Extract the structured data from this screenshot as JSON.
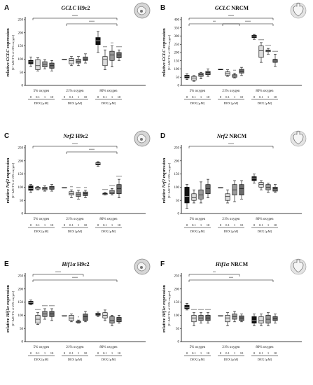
{
  "panels": [
    {
      "letter": "A",
      "title_gene": "GCLC",
      "title_cell": "H9c2",
      "ylabel_gene": "GCLC",
      "ylabel_pre": "relative ",
      "ylabel_post": " expression",
      "ysub": "[2^-ΔΔCT % of 21% oxygen]",
      "icon": "cell-icon",
      "ylim": [
        0,
        250
      ],
      "yticks": [
        0,
        50,
        100,
        150,
        200,
        250
      ],
      "groups": [
        "5% oxygen",
        "21% oxygen",
        "80% oxygen"
      ],
      "doses": [
        "0",
        "0.1",
        "1",
        "10"
      ],
      "dex_label": "DEX [µM]",
      "brackets": [
        {
          "from": 0,
          "to": 2,
          "level": 2,
          "text": "****"
        },
        {
          "from": 1,
          "to": 2,
          "level": 1,
          "text": "****"
        }
      ],
      "stars": [
        [
          "",
          "",
          "",
          ""
        ],
        [
          "",
          "",
          "",
          ""
        ],
        [
          "",
          "***",
          "**",
          "****"
        ]
      ]
    },
    {
      "letter": "B",
      "title_gene": "GCLC",
      "title_cell": "NRCM",
      "ylabel_gene": "GCLC",
      "ylabel_pre": "relative ",
      "ylabel_post": " expression",
      "ysub": "[2^-ΔΔCT % of 21% oxygen]",
      "icon": "heart-icon",
      "ylim": [
        0,
        400
      ],
      "yticks": [
        0,
        50,
        100,
        150,
        200,
        250,
        300,
        350,
        400
      ],
      "groups": [
        "5% oxygen",
        "21% oxygen",
        "80% oxygen"
      ],
      "doses": [
        "0",
        "0.1",
        "1",
        "10"
      ],
      "dex_label": "DEX [µM]",
      "brackets": [
        {
          "from": 0,
          "to": 2,
          "level": 2,
          "text": "****"
        },
        {
          "from": 0,
          "to": 1,
          "level": 1,
          "text": "**"
        },
        {
          "from": 1,
          "to": 2,
          "level": 1,
          "text": "****"
        }
      ],
      "stars": [
        [
          "",
          "",
          "",
          ""
        ],
        [
          "",
          "",
          "**",
          ""
        ],
        [
          "",
          "****",
          "****",
          "****"
        ]
      ]
    },
    {
      "letter": "C",
      "title_gene": "Nrf2",
      "title_cell": "H9c2",
      "ylabel_gene": "Nrf2",
      "ylabel_pre": "relative ",
      "ylabel_post": " expression",
      "ysub": "[2^-ΔΔCT % of 21% oxygen]",
      "icon": "cell-icon",
      "ylim": [
        0,
        250
      ],
      "yticks": [
        0,
        50,
        100,
        150,
        200,
        250
      ],
      "groups": [
        "5% oxygen",
        "21% oxygen",
        "80% oxygen"
      ],
      "doses": [
        "0",
        "0.1",
        "1",
        "10"
      ],
      "dex_label": "DEX [µM]",
      "brackets": [
        {
          "from": 0,
          "to": 2,
          "level": 2,
          "text": "****"
        },
        {
          "from": 1,
          "to": 2,
          "level": 1,
          "text": "****"
        }
      ],
      "stars": [
        [
          "",
          "",
          "",
          ""
        ],
        [
          "",
          "**",
          "***",
          "**"
        ],
        [
          "",
          "****",
          "****",
          "****"
        ]
      ]
    },
    {
      "letter": "D",
      "title_gene": "Nrf2",
      "title_cell": "NRCM",
      "ylabel_gene": "Nrf2",
      "ylabel_pre": "relative ",
      "ylabel_post": " expression",
      "ysub": "[2^-ΔΔCT % of 21% oxygen]",
      "icon": "heart-icon",
      "ylim": [
        0,
        250
      ],
      "yticks": [
        0,
        50,
        100,
        150,
        200,
        250
      ],
      "groups": [
        "5% oxygen",
        "21% oxygen",
        "80% oxygen"
      ],
      "doses": [
        "0",
        "0.1",
        "1",
        "10"
      ],
      "dex_label": "DEX [µM]",
      "brackets": [
        {
          "from": 0,
          "to": 2,
          "level": 2,
          "text": "****"
        }
      ],
      "stars": [
        [
          "",
          "",
          "",
          ""
        ],
        [
          "",
          "",
          "",
          ""
        ],
        [
          "",
          "",
          "",
          ""
        ]
      ]
    },
    {
      "letter": "E",
      "title_gene": "Hif1α",
      "title_cell": "H9c2",
      "ylabel_gene": "Hif1α",
      "ylabel_pre": "relative ",
      "ylabel_post": " expression",
      "ysub": "[2^-ΔΔCT % of 21% oxygen]",
      "icon": "cell-icon",
      "ylim": [
        0,
        250
      ],
      "yticks": [
        0,
        50,
        100,
        150,
        200,
        250
      ],
      "groups": [
        "5% oxygen",
        "21% oxygen",
        "80% oxygen"
      ],
      "doses": [
        "0",
        "0.1",
        "1",
        "10"
      ],
      "dex_label": "DEX [µM]",
      "brackets": [
        {
          "from": 0,
          "to": 1,
          "level": 2,
          "text": "****"
        },
        {
          "from": 0,
          "to": 2,
          "level": 1,
          "text": "****"
        }
      ],
      "stars": [
        [
          "",
          "****",
          "****",
          "****"
        ],
        [
          "",
          "",
          "*",
          ""
        ],
        [
          "",
          "",
          "",
          ""
        ]
      ]
    },
    {
      "letter": "F",
      "title_gene": "Hif1α",
      "title_cell": "NRCM",
      "ylabel_gene": "Hif1α",
      "ylabel_pre": "relative ",
      "ylabel_post": " expression",
      "ysub": "[2^-ΔΔCT % of 21% oxygen]",
      "icon": "heart-icon",
      "ylim": [
        0,
        250
      ],
      "yticks": [
        0,
        50,
        100,
        150,
        200,
        250
      ],
      "groups": [
        "5% oxygen",
        "21% oxygen",
        "80% oxygen"
      ],
      "doses": [
        "0",
        "0.1",
        "1",
        "10"
      ],
      "dex_label": "DEX [µM]",
      "brackets": [
        {
          "from": 0,
          "to": 1,
          "level": 2,
          "text": "**"
        },
        {
          "from": 0,
          "to": 2,
          "level": 1,
          "text": "***"
        }
      ],
      "stars": [
        [
          "",
          "****",
          "****",
          "****"
        ],
        [
          "",
          "",
          "",
          ""
        ],
        [
          "",
          "",
          "",
          ""
        ]
      ]
    }
  ],
  "chart_data": [
    {
      "type": "box",
      "panel": "A",
      "title": "GCLC H9c2",
      "ylabel": "relative GCLC expression [2^-ΔΔCT % of 21% oxygen]",
      "categories": [
        "5% oxygen",
        "21% oxygen",
        "80% oxygen"
      ],
      "ylim": [
        0,
        250
      ],
      "series": [
        {
          "name": "0",
          "boxes": [
            [
              72,
              82,
              90,
              95,
              108
            ],
            [
              100,
              100,
              100,
              100,
              100
            ],
            [
              125,
              155,
              170,
              182,
              205
            ]
          ]
        },
        {
          "name": "0.1",
          "boxes": [
            [
              55,
              60,
              75,
              98,
              105
            ],
            [
              75,
              82,
              95,
              102,
              110
            ],
            [
              60,
              75,
              100,
              110,
              135
            ]
          ]
        },
        {
          "name": "1",
          "boxes": [
            [
              62,
              70,
              80,
              90,
              98
            ],
            [
              75,
              85,
              92,
              100,
              110
            ],
            [
              70,
              95,
              115,
              130,
              150
            ]
          ]
        },
        {
          "name": "10",
          "boxes": [
            [
              55,
              65,
              75,
              85,
              95
            ],
            [
              85,
              95,
              100,
              108,
              120
            ],
            [
              95,
              105,
              115,
              125,
              135
            ]
          ]
        }
      ]
    },
    {
      "type": "box",
      "panel": "B",
      "title": "GCLC NRCM",
      "ylabel": "relative GCLC expression [2^-ΔΔCT % of 21% oxygen]",
      "categories": [
        "5% oxygen",
        "21% oxygen",
        "80% oxygen"
      ],
      "ylim": [
        0,
        400
      ],
      "series": [
        {
          "name": "0",
          "boxes": [
            [
              35,
              45,
              55,
              62,
              70
            ],
            [
              100,
              100,
              100,
              100,
              100
            ],
            [
              280,
              290,
              300,
              305,
              310
            ]
          ]
        },
        {
          "name": "0.1",
          "boxes": [
            [
              25,
              32,
              45,
              55,
              60
            ],
            [
              55,
              62,
              72,
              82,
              95
            ],
            [
              140,
              170,
              210,
              240,
              260
            ]
          ]
        },
        {
          "name": "1",
          "boxes": [
            [
              40,
              55,
              65,
              75,
              80
            ],
            [
              45,
              50,
              58,
              65,
              75
            ],
            [
              190,
              205,
              210,
              215,
              225
            ]
          ]
        },
        {
          "name": "10",
          "boxes": [
            [
              55,
              65,
              78,
              85,
              100
            ],
            [
              60,
              75,
              85,
              98,
              110
            ],
            [
              115,
              140,
              155,
              158,
              190
            ]
          ]
        }
      ]
    },
    {
      "type": "box",
      "panel": "C",
      "title": "Nrf2 H9c2",
      "ylabel": "relative Nrf2 expression [2^-ΔΔCT % of 21% oxygen]",
      "categories": [
        "5% oxygen",
        "21% oxygen",
        "80% oxygen"
      ],
      "ylim": [
        0,
        250
      ],
      "series": [
        {
          "name": "0",
          "boxes": [
            [
              80,
              88,
              95,
              105,
              110
            ],
            [
              100,
              100,
              100,
              100,
              100
            ],
            [
              180,
              185,
              190,
              193,
              197
            ]
          ]
        },
        {
          "name": "0.1",
          "boxes": [
            [
              90,
              93,
              97,
              100,
              103
            ],
            [
              60,
              70,
              75,
              83,
              90
            ],
            [
              70,
              72,
              75,
              77,
              80
            ]
          ]
        },
        {
          "name": "1",
          "boxes": [
            [
              85,
              90,
              95,
              100,
              105
            ],
            [
              55,
              65,
              72,
              80,
              88
            ],
            [
              70,
              75,
              80,
              88,
              95
            ]
          ]
        },
        {
          "name": "10",
          "boxes": [
            [
              85,
              92,
              97,
              103,
              110
            ],
            [
              60,
              68,
              75,
              82,
              88
            ],
            [
              60,
              75,
              95,
              110,
              130
            ]
          ]
        }
      ]
    },
    {
      "type": "box",
      "panel": "D",
      "title": "Nrf2 NRCM",
      "ylabel": "relative Nrf2 expression [2^-ΔΔCT % of 21% oxygen]",
      "categories": [
        "5% oxygen",
        "21% oxygen",
        "80% oxygen"
      ],
      "ylim": [
        0,
        250
      ],
      "series": [
        {
          "name": "0",
          "boxes": [
            [
              20,
              40,
              65,
              100,
              110
            ],
            [
              100,
              100,
              100,
              100,
              100
            ],
            [
              115,
              125,
              135,
              140,
              150
            ]
          ]
        },
        {
          "name": "0.1",
          "boxes": [
            [
              40,
              50,
              60,
              75,
              90
            ],
            [
              40,
              50,
              65,
              75,
              90
            ],
            [
              90,
              100,
              110,
              118,
              125
            ]
          ]
        },
        {
          "name": "1",
          "boxes": [
            [
              40,
              55,
              70,
              90,
              120
            ],
            [
              45,
              70,
              90,
              110,
              125
            ],
            [
              80,
              90,
              100,
              110,
              115
            ]
          ]
        },
        {
          "name": "10",
          "boxes": [
            [
              60,
              75,
              95,
              110,
              130
            ],
            [
              55,
              70,
              95,
              110,
              125
            ],
            [
              80,
              85,
              95,
              100,
              110
            ]
          ]
        }
      ]
    },
    {
      "type": "box",
      "panel": "E",
      "title": "Hif1α H9c2",
      "ylabel": "relative Hif1α expression [2^-ΔΔCT % of 21% oxygen]",
      "categories": [
        "5% oxygen",
        "21% oxygen",
        "80% oxygen"
      ],
      "ylim": [
        0,
        250
      ],
      "series": [
        {
          "name": "0",
          "boxes": [
            [
              140,
              143,
              148,
              153,
              158
            ],
            [
              100,
              100,
              100,
              100,
              100
            ],
            [
              95,
              100,
              105,
              108,
              112
            ]
          ]
        },
        {
          "name": "0.1",
          "boxes": [
            [
              65,
              70,
              85,
              100,
              110
            ],
            [
              75,
              80,
              90,
              100,
              105
            ],
            [
              80,
              90,
              100,
              110,
              120
            ]
          ]
        },
        {
          "name": "1",
          "boxes": [
            [
              85,
              95,
              105,
              115,
              125
            ],
            [
              70,
              72,
              75,
              78,
              82
            ],
            [
              60,
              70,
              80,
              95,
              100
            ]
          ]
        },
        {
          "name": "10",
          "boxes": [
            [
              80,
              95,
              105,
              115,
              125
            ],
            [
              75,
              80,
              95,
              105,
              115
            ],
            [
              70,
              75,
              85,
              92,
              100
            ]
          ]
        }
      ]
    },
    {
      "type": "box",
      "panel": "F",
      "title": "Hif1α NRCM",
      "ylabel": "relative Hif1α expression [2^-ΔΔCT % of 21% oxygen]",
      "categories": [
        "5% oxygen",
        "21% oxygen",
        "80% oxygen"
      ],
      "ylim": [
        0,
        250
      ],
      "series": [
        {
          "name": "0",
          "boxes": [
            [
              120,
              125,
              130,
              138,
              145
            ],
            [
              100,
              100,
              100,
              100,
              100
            ],
            [
              60,
              70,
              80,
              95,
              105
            ]
          ]
        },
        {
          "name": "0.1",
          "boxes": [
            [
              60,
              75,
              90,
              100,
              110
            ],
            [
              60,
              75,
              90,
              100,
              110
            ],
            [
              60,
              70,
              80,
              95,
              105
            ]
          ]
        },
        {
          "name": "1",
          "boxes": [
            [
              70,
              80,
              90,
              100,
              110
            ],
            [
              75,
              85,
              95,
              105,
              115
            ],
            [
              60,
              70,
              85,
              100,
              110
            ]
          ]
        },
        {
          "name": "10",
          "boxes": [
            [
              70,
              80,
              90,
              100,
              110
            ],
            [
              75,
              80,
              90,
              98,
              105
            ],
            [
              70,
              80,
              88,
              95,
              105
            ]
          ]
        }
      ]
    }
  ],
  "colors": {
    "dose_0": "#111111",
    "dose_0_1": "#dcdcdc",
    "dose_1": "#9a9a9a",
    "dose_10": "#6a6a6a",
    "axis": "#000000"
  }
}
